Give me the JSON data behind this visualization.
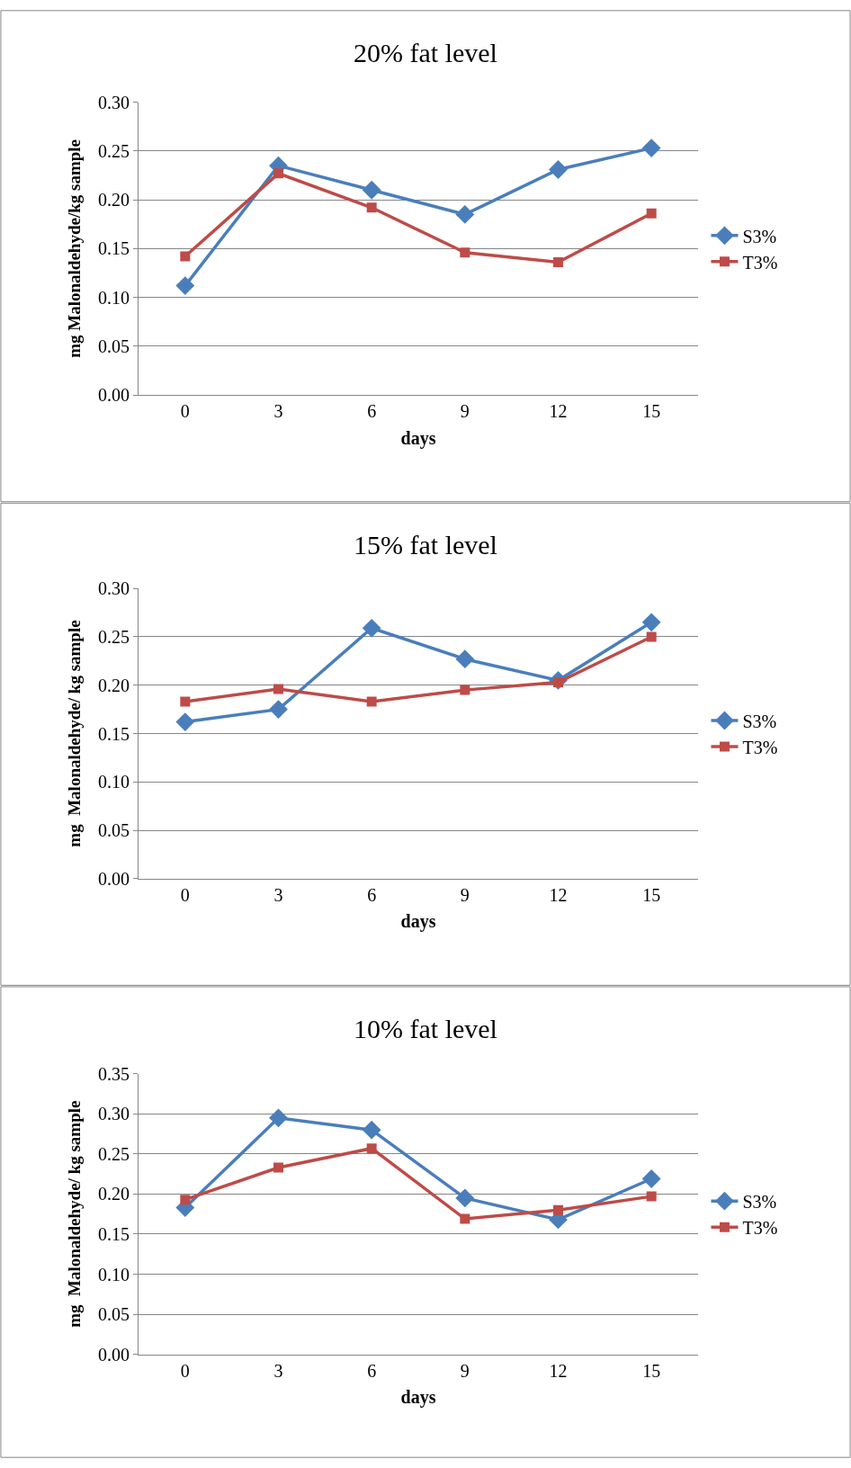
{
  "chart_data": [
    {
      "type": "line",
      "title": "20% fat level",
      "xlabel": "days",
      "ylabel": "mg Malonaldehyde/kg sample",
      "categories": [
        "0",
        "3",
        "6",
        "9",
        "12",
        "15"
      ],
      "series": [
        {
          "name": "S3%",
          "color": "#4a7ebb",
          "marker": "diamond",
          "values": [
            0.112,
            0.235,
            0.21,
            0.185,
            0.231,
            0.253
          ]
        },
        {
          "name": "T3%",
          "color": "#be4b48",
          "marker": "square",
          "values": [
            0.142,
            0.227,
            0.192,
            0.146,
            0.136,
            0.186
          ]
        }
      ],
      "ylim": [
        0,
        0.3
      ],
      "yticks": [
        {
          "value": 0,
          "label": "0.00"
        },
        {
          "value": 0.05,
          "label": "0.05"
        },
        {
          "value": 0.1,
          "label": "0.10"
        },
        {
          "value": 0.15,
          "label": "0.15"
        },
        {
          "value": 0.2,
          "label": "0.20"
        },
        {
          "value": 0.25,
          "label": "0.25"
        },
        {
          "value": 0.3,
          "label": "0.30"
        }
      ],
      "grid": "y",
      "legend": "right",
      "line_style": "solid"
    },
    {
      "type": "line",
      "title": "15% fat level",
      "xlabel": "days",
      "ylabel": "mg  Malonaldehyde/ kg sample",
      "categories": [
        "0",
        "3",
        "6",
        "9",
        "12",
        "15"
      ],
      "series": [
        {
          "name": "S3%",
          "color": "#4a7ebb",
          "marker": "diamond",
          "values": [
            0.162,
            0.175,
            0.259,
            0.227,
            0.205,
            0.265
          ]
        },
        {
          "name": "T3%",
          "color": "#be4b48",
          "marker": "square",
          "values": [
            0.183,
            0.196,
            0.183,
            0.195,
            0.203,
            0.25
          ]
        }
      ],
      "ylim": [
        0,
        0.3
      ],
      "yticks": [
        {
          "value": 0,
          "label": "0.00"
        },
        {
          "value": 0.05,
          "label": "0.05"
        },
        {
          "value": 0.1,
          "label": "0.10"
        },
        {
          "value": 0.15,
          "label": "0.15"
        },
        {
          "value": 0.2,
          "label": "0.20"
        },
        {
          "value": 0.25,
          "label": "0.25"
        },
        {
          "value": 0.3,
          "label": "0.30"
        }
      ],
      "grid": "y",
      "legend": "right",
      "line_style": "solid"
    },
    {
      "type": "line",
      "title": "10% fat level",
      "xlabel": "days",
      "ylabel": "mg  Malonaldehyde/ kg sample",
      "categories": [
        "0",
        "3",
        "6",
        "9",
        "12",
        "15"
      ],
      "series": [
        {
          "name": "S3%",
          "color": "#4a7ebb",
          "marker": "diamond",
          "values": [
            0.183,
            0.295,
            0.28,
            0.195,
            0.168,
            0.219
          ]
        },
        {
          "name": "T3%",
          "color": "#be4b48",
          "marker": "square",
          "values": [
            0.193,
            0.233,
            0.257,
            0.169,
            0.18,
            0.197
          ]
        }
      ],
      "ylim": [
        0,
        0.35
      ],
      "yticks": [
        {
          "value": 0,
          "label": "0.00"
        },
        {
          "value": 0.05,
          "label": "0.05"
        },
        {
          "value": 0.1,
          "label": "0.10"
        },
        {
          "value": 0.15,
          "label": "0.15"
        },
        {
          "value": 0.2,
          "label": "0.20"
        },
        {
          "value": 0.25,
          "label": "0.25"
        },
        {
          "value": 0.3,
          "label": "0.30"
        },
        {
          "value": 0.35,
          "label": "0.35"
        }
      ],
      "grid": "y",
      "legend": "right",
      "line_style": "solid"
    }
  ]
}
